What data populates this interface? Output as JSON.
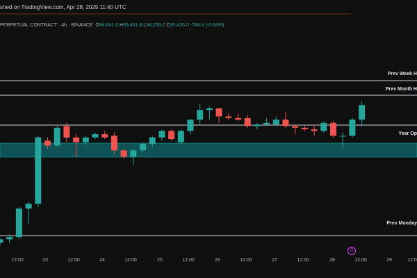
{
  "header": {
    "published": "shed on TradingView.com, Apr 28, 2025 11:40 UTC"
  },
  "symbol": {
    "title": "PERPETUAL CONTRACT · 4h · BINANCE",
    "open_key": "O",
    "open": "94,641.6",
    "high_key": "H",
    "high": "95,461.8",
    "low_key": "L",
    "low": "94,259.2",
    "close_key": "C",
    "close": "95,426.0",
    "change": "-784.4 (-0.83%)"
  },
  "levels": {
    "prev_week_high": "Prev Week H",
    "prev_month_high": "Prev Month H",
    "year_open": "Year Op",
    "prev_monday": "Prev Monday"
  },
  "x_axis": {
    "ticks": [
      "12:00",
      "23",
      "12:00",
      "24",
      "12:00",
      "25",
      "12:00",
      "26",
      "12:00",
      "27",
      "12:00",
      "28",
      "12:00",
      "29",
      "12:0"
    ]
  },
  "colors": {
    "background": "#0f0f10",
    "up": "#26a69a",
    "down": "#ef5350",
    "zone": "#0e5e61",
    "level_line": "#d1d4dc",
    "alert": "#e040fb"
  },
  "icons": {
    "alert": "alert-clock-icon"
  },
  "chart_data": {
    "type": "candlestick",
    "ylim": [
      92.8,
      98.3
    ],
    "y_unit": "thousand USD (approx.)",
    "levels": [
      {
        "name": "Prev Week High",
        "value": 97.3
      },
      {
        "name": "Prev Month High",
        "value": 97.05
      },
      {
        "name": "Year Open",
        "value": 96.2
      },
      {
        "name": "Zone top",
        "value": 95.85
      },
      {
        "name": "Zone bottom",
        "value": 95.45
      },
      {
        "name": "Prev Monday",
        "value": 93.05
      }
    ],
    "candles": [
      {
        "o": 92.95,
        "h": 93.1,
        "l": 92.85,
        "c": 93.05
      },
      {
        "o": 93.05,
        "h": 93.2,
        "l": 92.95,
        "c": 93.12
      },
      {
        "o": 93.12,
        "h": 94.05,
        "l": 93.05,
        "c": 94.0
      },
      {
        "o": 94.0,
        "h": 94.2,
        "l": 93.5,
        "c": 94.15
      },
      {
        "o": 94.15,
        "h": 96.25,
        "l": 94.05,
        "c": 96.2
      },
      {
        "o": 96.1,
        "h": 96.2,
        "l": 95.85,
        "c": 95.95
      },
      {
        "o": 95.95,
        "h": 96.55,
        "l": 95.9,
        "c": 96.5
      },
      {
        "o": 96.55,
        "h": 96.65,
        "l": 96.05,
        "c": 96.2
      },
      {
        "o": 96.2,
        "h": 96.3,
        "l": 95.6,
        "c": 96.05
      },
      {
        "o": 96.05,
        "h": 96.25,
        "l": 95.95,
        "c": 96.2
      },
      {
        "o": 96.2,
        "h": 96.35,
        "l": 96.15,
        "c": 96.3
      },
      {
        "o": 96.3,
        "h": 96.4,
        "l": 96.15,
        "c": 96.2
      },
      {
        "o": 96.25,
        "h": 96.35,
        "l": 95.7,
        "c": 95.8
      },
      {
        "o": 95.8,
        "h": 95.85,
        "l": 95.55,
        "c": 95.6
      },
      {
        "o": 95.6,
        "h": 95.85,
        "l": 95.35,
        "c": 95.8
      },
      {
        "o": 95.8,
        "h": 96.05,
        "l": 95.75,
        "c": 96.0
      },
      {
        "o": 96.0,
        "h": 96.25,
        "l": 95.9,
        "c": 96.2
      },
      {
        "o": 96.2,
        "h": 96.45,
        "l": 96.1,
        "c": 96.4
      },
      {
        "o": 96.4,
        "h": 96.45,
        "l": 96.1,
        "c": 96.15
      },
      {
        "o": 96.05,
        "h": 96.45,
        "l": 96.0,
        "c": 96.4
      },
      {
        "o": 96.4,
        "h": 96.75,
        "l": 96.3,
        "c": 96.75
      },
      {
        "o": 96.75,
        "h": 97.25,
        "l": 96.6,
        "c": 97.05
      },
      {
        "o": 97.05,
        "h": 97.15,
        "l": 96.75,
        "c": 97.1
      },
      {
        "o": 97.1,
        "h": 97.1,
        "l": 96.65,
        "c": 96.85
      },
      {
        "o": 96.85,
        "h": 96.95,
        "l": 96.75,
        "c": 96.8
      },
      {
        "o": 96.8,
        "h": 96.95,
        "l": 96.7,
        "c": 96.75
      },
      {
        "o": 96.8,
        "h": 96.9,
        "l": 96.5,
        "c": 96.55
      },
      {
        "o": 96.55,
        "h": 96.65,
        "l": 96.45,
        "c": 96.6
      },
      {
        "o": 96.6,
        "h": 96.8,
        "l": 96.55,
        "c": 96.65
      },
      {
        "o": 96.6,
        "h": 96.85,
        "l": 96.55,
        "c": 96.75
      },
      {
        "o": 96.75,
        "h": 97.0,
        "l": 96.5,
        "c": 96.55
      },
      {
        "o": 96.55,
        "h": 96.6,
        "l": 96.3,
        "c": 96.5
      },
      {
        "o": 96.5,
        "h": 96.55,
        "l": 96.4,
        "c": 96.45
      },
      {
        "o": 96.45,
        "h": 96.55,
        "l": 96.25,
        "c": 96.4
      },
      {
        "o": 96.4,
        "h": 96.7,
        "l": 96.35,
        "c": 96.65
      },
      {
        "o": 96.65,
        "h": 96.7,
        "l": 96.2,
        "c": 96.25
      },
      {
        "o": 96.25,
        "h": 96.35,
        "l": 95.85,
        "c": 96.25
      },
      {
        "o": 96.25,
        "h": 96.8,
        "l": 96.2,
        "c": 96.75
      },
      {
        "o": 96.75,
        "h": 97.3,
        "l": 96.55,
        "c": 97.2
      }
    ]
  }
}
